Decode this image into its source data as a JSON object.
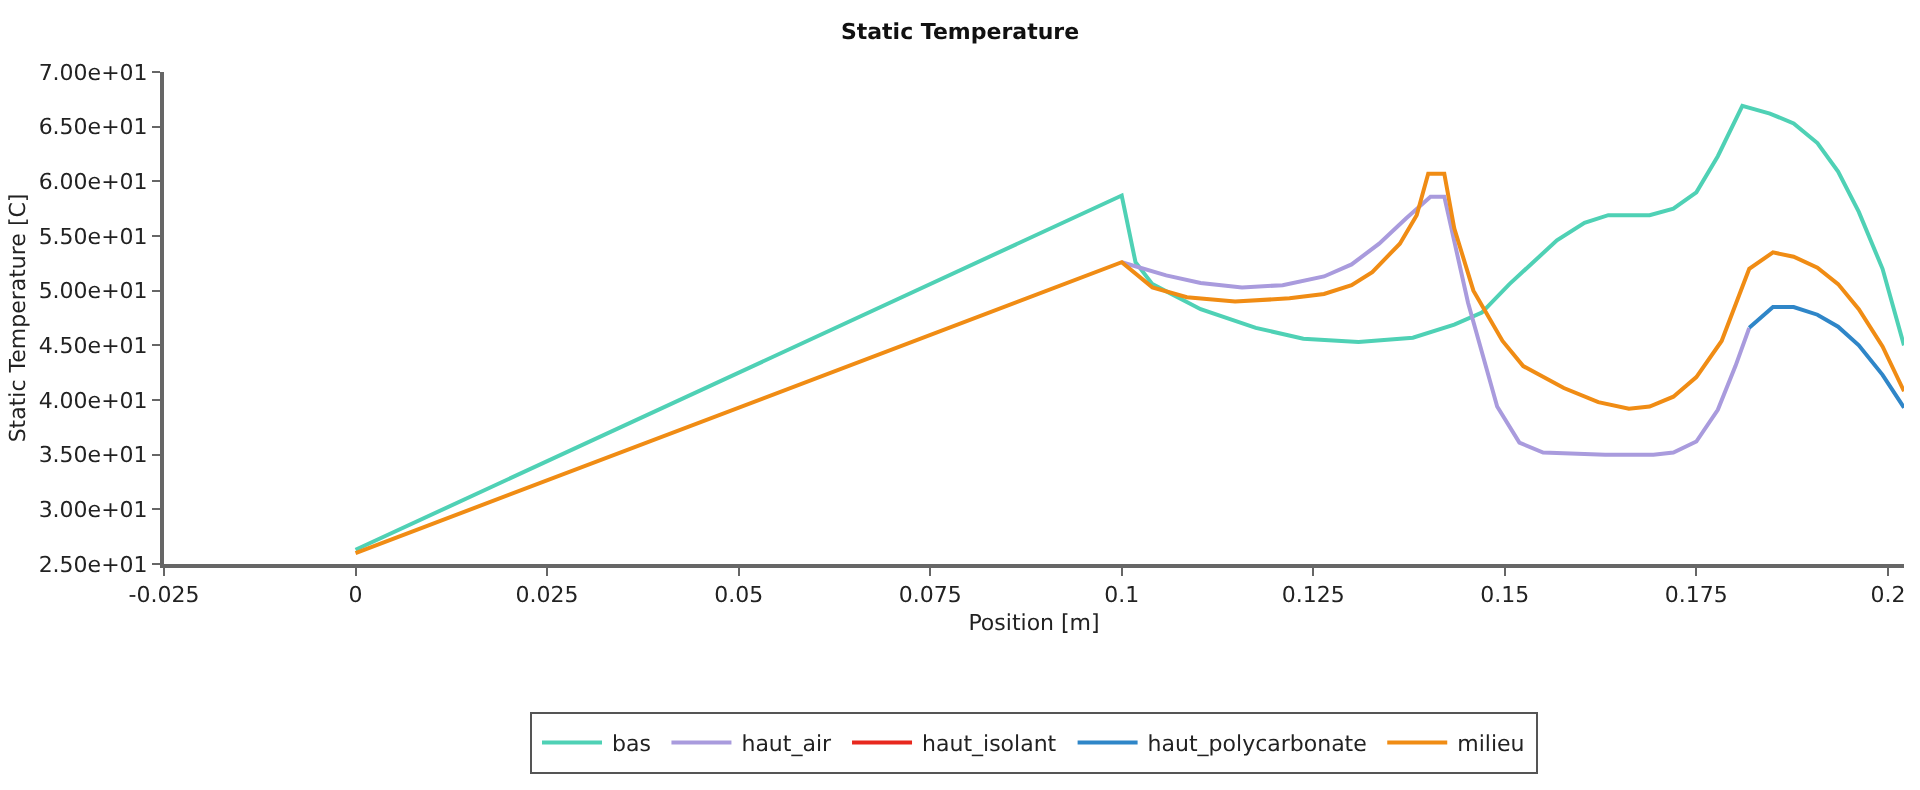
{
  "chart_data": {
    "type": "line",
    "title": "Static Temperature",
    "xlabel": "Position [m]",
    "ylabel": "Static Temperature [C]",
    "xlim": [
      -0.025,
      0.2021
    ],
    "xticks": [
      -0.025,
      0,
      0.025,
      0.05,
      0.075,
      0.1,
      0.125,
      0.15,
      0.175,
      0.2
    ],
    "ylim": [
      25,
      70
    ],
    "yticks": [
      {
        "value": 25,
        "label": "2.50e+01"
      },
      {
        "value": 30,
        "label": "3.00e+01"
      },
      {
        "value": 35,
        "label": "3.50e+01"
      },
      {
        "value": 40,
        "label": "4.00e+01"
      },
      {
        "value": 45,
        "label": "4.50e+01"
      },
      {
        "value": 50,
        "label": "5.00e+01"
      },
      {
        "value": 55,
        "label": "5.50e+01"
      },
      {
        "value": 60,
        "label": "6.00e+01"
      },
      {
        "value": 65,
        "label": "6.50e+01"
      },
      {
        "value": 70,
        "label": "7.00e+01"
      }
    ],
    "legend": "bottom",
    "marker": "none",
    "line_style": "solid",
    "series": [
      {
        "name": "bas",
        "color": "#4fd1b5",
        "x": [
          0,
          0.1,
          0.1018,
          0.104,
          0.1103,
          0.1175,
          0.1237,
          0.1309,
          0.138,
          0.1434,
          0.147,
          0.1506,
          0.1568,
          0.1604,
          0.1635,
          0.1689,
          0.172,
          0.175,
          0.1778,
          0.181,
          0.1846,
          0.1877,
          0.1908,
          0.1935,
          0.1962,
          0.1993,
          0.2021
        ],
        "values": [
          26.3,
          58.7,
          52.6,
          50.6,
          48.3,
          46.6,
          45.6,
          45.3,
          45.7,
          46.9,
          48.0,
          50.6,
          54.6,
          56.2,
          56.9,
          56.9,
          57.5,
          59.0,
          62.3,
          66.9,
          66.2,
          65.3,
          63.5,
          60.9,
          57.2,
          52.0,
          45.0
        ]
      },
      {
        "name": "haut_air",
        "color": "#a99bdd",
        "x": [
          0.1,
          0.1058,
          0.1103,
          0.1157,
          0.121,
          0.1264,
          0.13,
          0.1336,
          0.1371,
          0.1403,
          0.1421,
          0.1452,
          0.149,
          0.1519,
          0.155,
          0.1631,
          0.1694,
          0.172,
          0.175,
          0.1778,
          0.1801,
          0.1819
        ],
        "values": [
          52.6,
          51.4,
          50.7,
          50.3,
          50.5,
          51.3,
          52.4,
          54.3,
          56.6,
          58.6,
          58.6,
          48.9,
          39.4,
          36.1,
          35.2,
          35.0,
          35.0,
          35.2,
          36.2,
          39.1,
          43.1,
          46.6
        ]
      },
      {
        "name": "haut_isolant",
        "color": "#e8281e"
      },
      {
        "name": "haut_polycarbonate",
        "color": "#2f86c8",
        "x": [
          0.1819,
          0.185,
          0.1877,
          0.1908,
          0.1935,
          0.1962,
          0.1993,
          0.2021
        ],
        "values": [
          46.6,
          48.5,
          48.5,
          47.8,
          46.7,
          45.0,
          42.3,
          39.3
        ]
      },
      {
        "name": "milieu",
        "color": "#f08c14",
        "x": [
          0,
          0.1,
          0.104,
          0.1085,
          0.1148,
          0.1219,
          0.1264,
          0.13,
          0.1327,
          0.1363,
          0.1385,
          0.14,
          0.1421,
          0.1434,
          0.1459,
          0.1497,
          0.1524,
          0.1577,
          0.1622,
          0.1662,
          0.1689,
          0.172,
          0.175,
          0.1783,
          0.1819,
          0.185,
          0.1877,
          0.1908,
          0.1935,
          0.1962,
          0.1993,
          0.2021
        ],
        "values": [
          26.0,
          52.6,
          50.3,
          49.4,
          49.0,
          49.3,
          49.7,
          50.5,
          51.7,
          54.3,
          56.9,
          60.7,
          60.7,
          55.7,
          50.0,
          45.4,
          43.1,
          41.1,
          39.8,
          39.2,
          39.4,
          40.3,
          42.1,
          45.4,
          52.0,
          53.5,
          53.1,
          52.1,
          50.6,
          48.3,
          44.9,
          40.8
        ]
      }
    ]
  }
}
